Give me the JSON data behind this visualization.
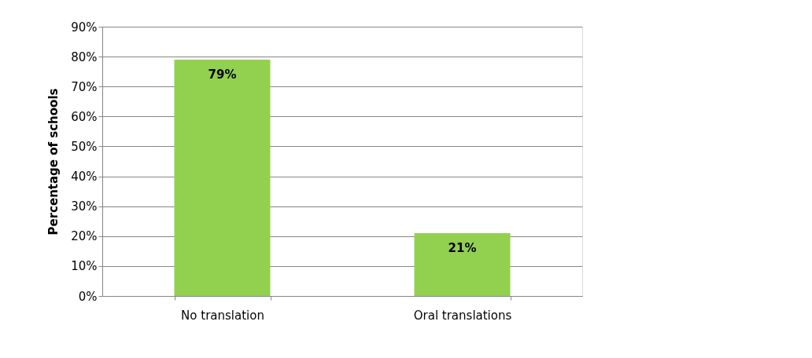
{
  "chart_data": {
    "type": "bar",
    "ylabel": "Percentage of schools",
    "categories": [
      "No translation",
      "Oral translations"
    ],
    "values": [
      79,
      21
    ],
    "color": "#92d050",
    "value_labels": [
      "79%",
      "21%"
    ],
    "ylim": [
      0,
      90
    ],
    "yticks": [
      {
        "value": 0,
        "label": "0%"
      },
      {
        "value": 10,
        "label": "10%"
      },
      {
        "value": 20,
        "label": "20%"
      },
      {
        "value": 30,
        "label": "30%"
      },
      {
        "value": 40,
        "label": "40%"
      },
      {
        "value": 50,
        "label": "50%"
      },
      {
        "value": 60,
        "label": "60%"
      },
      {
        "value": 70,
        "label": "70%"
      },
      {
        "value": 80,
        "label": "80%"
      },
      {
        "value": 90,
        "label": "90%"
      }
    ],
    "grid": "y",
    "legend": false
  }
}
